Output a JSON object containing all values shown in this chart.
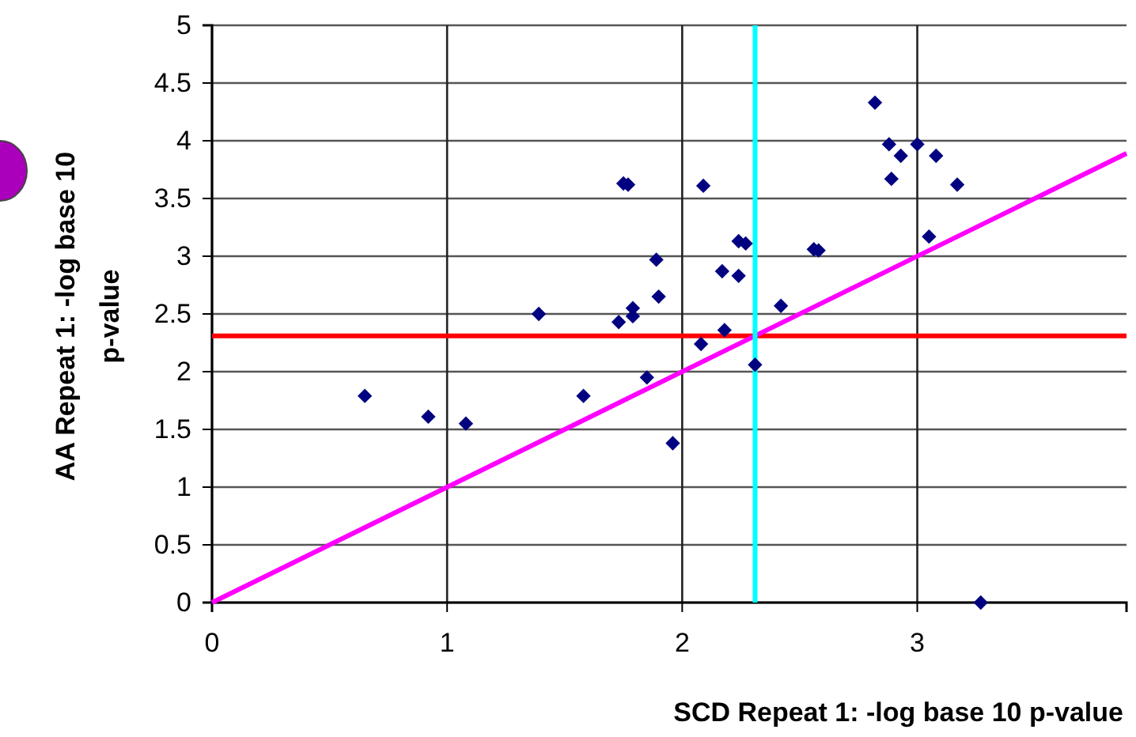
{
  "chart_data": {
    "type": "scatter",
    "xlabel": "SCD Repeat 1: -log base 10 p-value",
    "ylabel": "AA Repeat 1: -log base 10 p-value",
    "xlim": [
      0,
      3.89
    ],
    "ylim": [
      0,
      5
    ],
    "xticks": [
      0,
      1,
      2,
      3
    ],
    "yticks": [
      0,
      0.5,
      1,
      1.5,
      2,
      2.5,
      3,
      3.5,
      4,
      4.5,
      5
    ],
    "grid": true,
    "series": [
      {
        "color": "#000080",
        "marker": "diamond",
        "x": [
          0.65,
          0.92,
          1.08,
          1.39,
          1.58,
          1.75,
          1.77,
          1.73,
          1.79,
          1.79,
          1.89,
          1.9,
          1.85,
          1.96,
          2.09,
          2.17,
          2.08,
          2.18,
          2.24,
          2.24,
          2.27,
          2.31,
          2.42,
          2.56,
          2.58,
          2.82,
          2.88,
          2.93,
          2.89,
          3.0,
          3.08,
          3.17,
          3.05,
          3.27
        ],
        "values": [
          1.79,
          1.61,
          1.55,
          2.5,
          1.79,
          3.63,
          3.62,
          2.43,
          2.55,
          2.48,
          2.97,
          2.65,
          1.95,
          1.38,
          3.61,
          2.87,
          2.24,
          2.36,
          2.83,
          3.13,
          3.11,
          2.06,
          2.57,
          3.06,
          3.05,
          4.33,
          3.97,
          3.87,
          3.67,
          3.97,
          3.87,
          3.62,
          3.17,
          0
        ]
      },
      {
        "type": "line",
        "color": "#ff00ff",
        "marker": "none",
        "x": [
          0,
          3.89
        ],
        "values": [
          0,
          3.89
        ]
      }
    ],
    "ref_lines": [
      {
        "axis": "y",
        "value": 2.31,
        "color": "#ff0000"
      },
      {
        "axis": "x",
        "value": 2.31,
        "color": "#00ffff"
      }
    ]
  }
}
